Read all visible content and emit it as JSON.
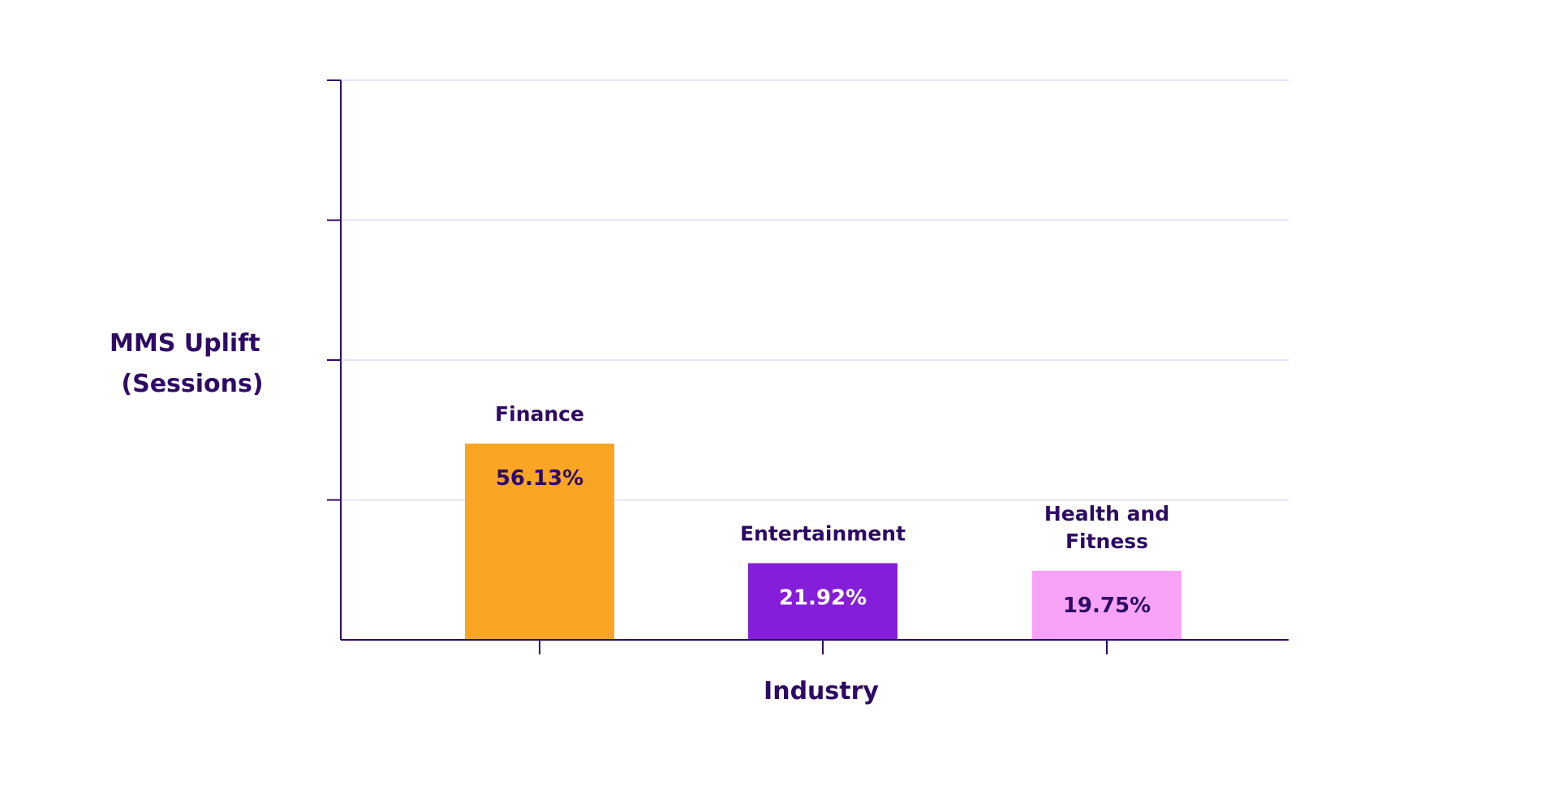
{
  "chart_data": {
    "type": "bar",
    "categories": [
      "Finance",
      "Entertainment",
      "Health and Fitness"
    ],
    "category_label_lines": [
      [
        "Finance"
      ],
      [
        "Entertainment"
      ],
      [
        "Health and",
        "Fitness"
      ]
    ],
    "values": [
      56.13,
      21.92,
      19.75
    ],
    "value_labels": [
      "56.13%",
      "21.92%",
      "19.75%"
    ],
    "bar_colors": [
      "#fba524",
      "#851ed8",
      "#f9a3f8"
    ],
    "value_label_colors": [
      "#2d0a63",
      "#ffffff",
      "#2d0a63"
    ],
    "xlabel": "Industry",
    "ylabel_lines": [
      "MMS Uplift",
      "(Sessions)"
    ],
    "ylim": [
      0,
      160
    ],
    "y_gridlines": [
      40,
      80,
      120,
      160
    ],
    "grid": true,
    "axis_color": "#2d0a63",
    "grid_color": "#e4e3f6",
    "text_color": "#2d0a63"
  }
}
